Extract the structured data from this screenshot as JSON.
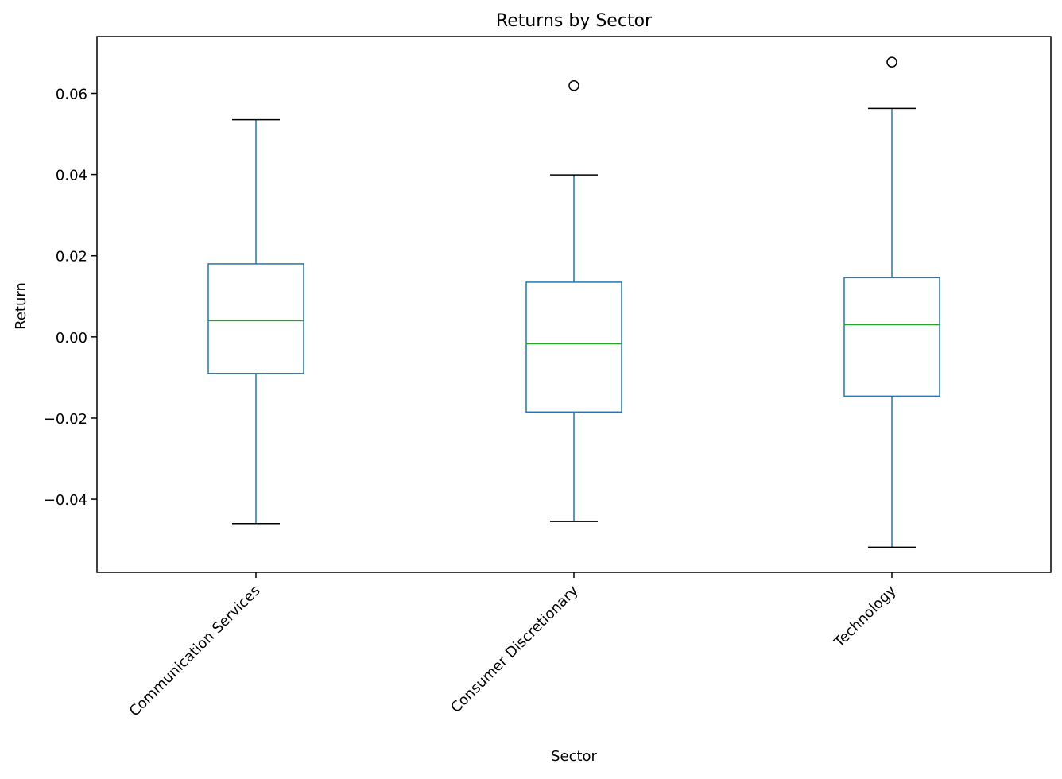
{
  "chart_data": {
    "type": "box",
    "title": "Returns by Sector",
    "xlabel": "Sector",
    "ylabel": "Return",
    "ylim": [
      -0.058,
      0.074
    ],
    "yticks": [
      -0.04,
      -0.02,
      0.0,
      0.02,
      0.04,
      0.06
    ],
    "ytick_labels": [
      "−0.04",
      "−0.02",
      "0.00",
      "0.02",
      "0.04",
      "0.06"
    ],
    "grid": false,
    "legend": "none",
    "categories": [
      "Communication Services",
      "Consumer Discretionary",
      "Technology"
    ],
    "boxes": [
      {
        "category": "Communication Services",
        "whisker_low": -0.046,
        "q1": -0.009,
        "median": 0.004,
        "q3": 0.018,
        "whisker_high": 0.0535,
        "outliers": []
      },
      {
        "category": "Consumer Discretionary",
        "whisker_low": -0.0455,
        "q1": -0.0185,
        "median": -0.0017,
        "q3": 0.0135,
        "whisker_high": 0.0399,
        "outliers": [
          0.0619
        ]
      },
      {
        "category": "Technology",
        "whisker_low": -0.0518,
        "q1": -0.0146,
        "median": 0.003,
        "q3": 0.0146,
        "whisker_high": 0.0563,
        "outliers": [
          0.0677
        ]
      }
    ],
    "colors": {
      "box": "#1f77b4",
      "median": "#2ca02c",
      "cap": "#000000",
      "outlier": "#000000",
      "axes": "#000000"
    }
  }
}
